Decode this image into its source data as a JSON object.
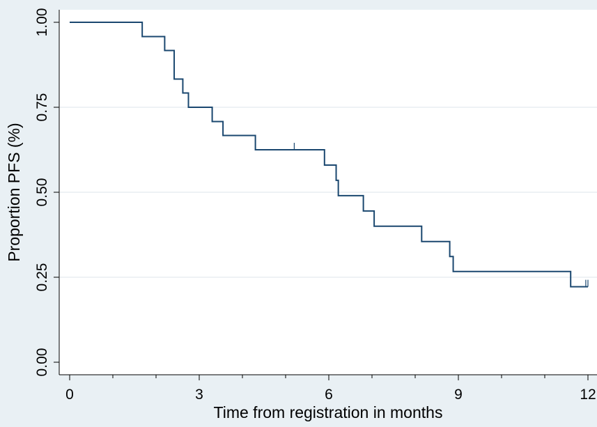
{
  "chart_data": {
    "type": "line",
    "subtype": "step",
    "xlabel": "Time from registration in months",
    "ylabel": "Proportion PFS (%)",
    "xlim": [
      0,
      12
    ],
    "ylim": [
      0,
      1
    ],
    "x_ticks": [
      0,
      3,
      6,
      9,
      12
    ],
    "x_tick_labels": [
      "0",
      "3",
      "6",
      "9",
      "12"
    ],
    "x_minor_ticks": [
      1,
      2,
      4,
      5,
      7,
      8,
      10,
      11
    ],
    "y_ticks": [
      0,
      0.25,
      0.5,
      0.75,
      1
    ],
    "y_tick_labels": [
      "0.00",
      "0.25",
      "0.50",
      "0.75",
      "1.00"
    ],
    "grid": "horizontal",
    "line_color": "#1a476f",
    "plot_background": "#ffffff",
    "figure_background": "#e9f0f4",
    "series": [
      {
        "x": [
          0,
          1.68,
          2.2,
          2.42,
          2.62,
          2.75,
          3.3,
          3.55,
          4.3,
          5.9,
          6.17,
          6.22,
          6.8,
          7.05,
          8.15,
          8.8,
          8.88,
          11.6,
          12
        ],
        "y": [
          1.0,
          0.958,
          0.917,
          0.833,
          0.792,
          0.75,
          0.708,
          0.667,
          0.625,
          0.58,
          0.535,
          0.49,
          0.445,
          0.4,
          0.355,
          0.311,
          0.267,
          0.222,
          0.222
        ]
      }
    ],
    "censored": [
      {
        "x": 5.2,
        "y": 0.625
      },
      {
        "x": 11.95,
        "y": 0.222
      },
      {
        "x": 12.0,
        "y": 0.222
      }
    ]
  }
}
